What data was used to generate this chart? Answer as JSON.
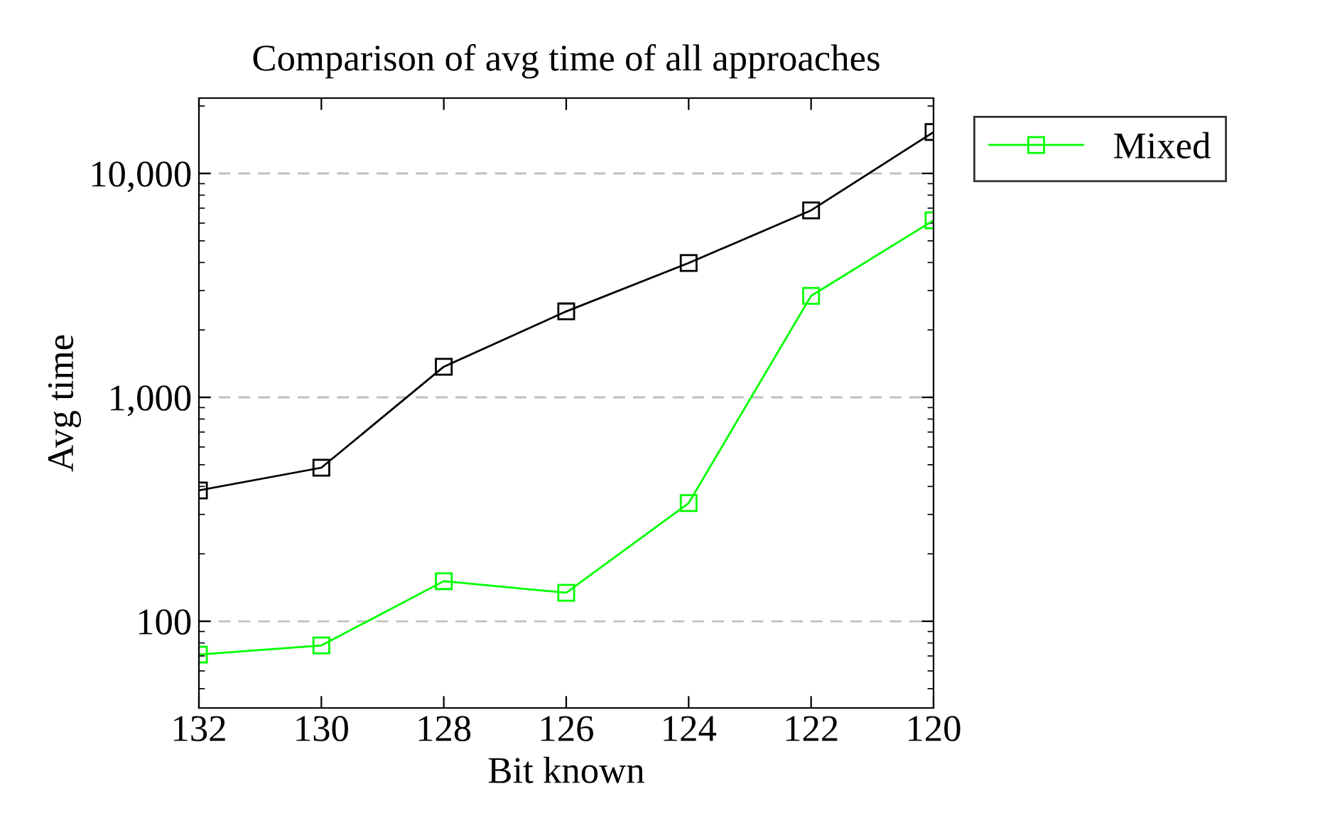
{
  "chart_data": {
    "type": "line",
    "title": "Comparison of avg time of all approaches",
    "xlabel": "Bit known",
    "ylabel": "Avg time",
    "x": [
      132,
      130,
      128,
      126,
      124,
      122,
      120
    ],
    "series": [
      {
        "color": "#000000",
        "values": [
          384,
          485,
          1370,
          2420,
          3980,
          6840,
          15300
        ]
      },
      {
        "name": "Mixed",
        "color": "#00ff00",
        "values": [
          71,
          78,
          151,
          134,
          337,
          2840,
          6170
        ]
      }
    ],
    "log": "y",
    "xlim": [
      132,
      120
    ],
    "xticks": [
      132,
      130,
      128,
      126,
      124,
      122,
      120
    ],
    "ylim": [
      41,
      21700
    ],
    "yticks": [
      {
        "value": 100,
        "label": "100"
      },
      {
        "value": 1000,
        "label": "1,000"
      },
      {
        "value": 10000,
        "label": "10,000"
      }
    ],
    "grid": "y",
    "legend": "top right",
    "marker": "square",
    "line_style": "solid"
  }
}
